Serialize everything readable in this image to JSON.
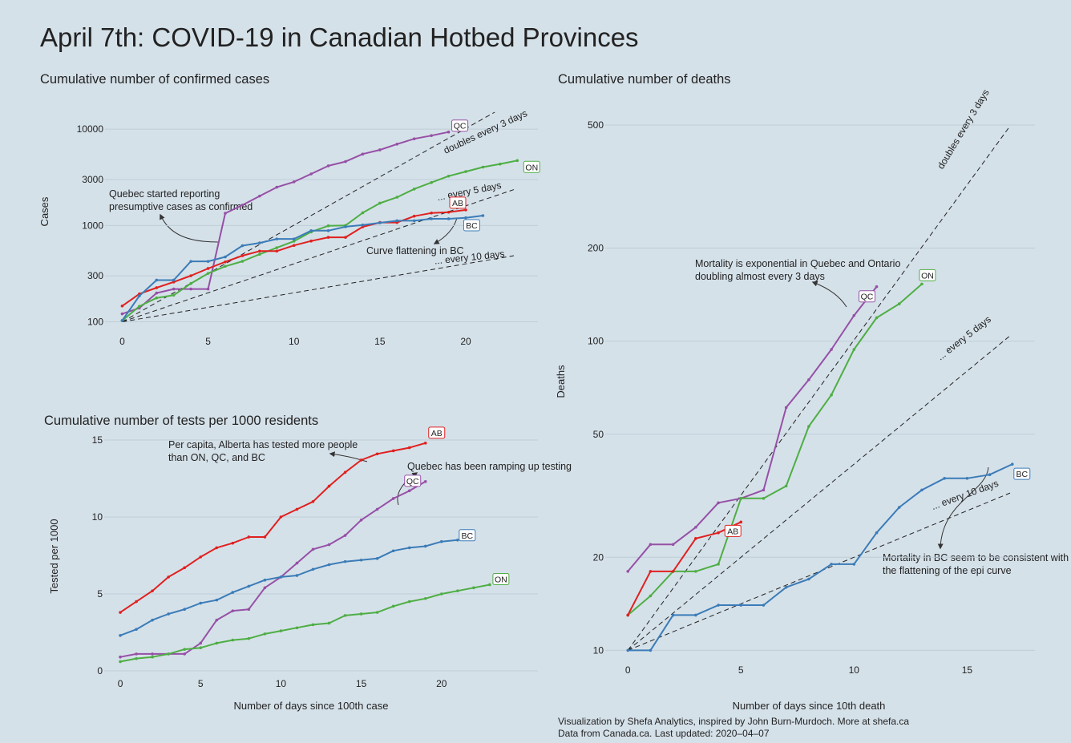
{
  "header": {
    "title": "April 7th: COVID-19 in Canadian Hotbed Provinces"
  },
  "footer": {
    "line1": "Visualization by Shefa Analytics, inspired by John Burn-Murdoch. More at shefa.ca",
    "line2": "Data from Canada.ca. Last updated: 2020–04–07"
  },
  "colors": {
    "QC": "#9650a6",
    "ON": "#4eae44",
    "AB": "#e0201f",
    "BC": "#3b7cb8",
    "background": "#d5e1e9",
    "grid": "#bfcdd7"
  },
  "chart_data": [
    {
      "id": "cases",
      "type": "line",
      "title": "Cumulative number of confirmed cases",
      "xlabel": "",
      "ylabel": "Cases",
      "yscale": "log",
      "xlim": [
        -1,
        24.2
      ],
      "ylim": [
        85,
        15000
      ],
      "xticks": [
        0,
        5,
        10,
        15,
        20
      ],
      "yticks": [
        100,
        300,
        1000,
        3000,
        10000
      ],
      "series": [
        {
          "name": "QC",
          "x": [
            0,
            1,
            2,
            3,
            4,
            5,
            6,
            7,
            8,
            9,
            10,
            11,
            12,
            13,
            14,
            15,
            16,
            17,
            18,
            19
          ],
          "y": [
            121,
            139,
            199,
            219,
            219,
            219,
            1339,
            1629,
            2021,
            2498,
            2840,
            3430,
            4162,
            4611,
            5518,
            6101,
            6997,
            7944,
            8580,
            9340
          ]
        },
        {
          "name": "ON",
          "x": [
            0,
            1,
            2,
            3,
            4,
            5,
            6,
            7,
            8,
            9,
            10,
            11,
            12,
            13,
            14,
            15,
            16,
            17,
            18,
            19,
            20,
            21,
            22,
            23
          ],
          "y": [
            103,
            145,
            177,
            189,
            250,
            318,
            377,
            425,
            503,
            588,
            688,
            858,
            994,
            1000,
            1355,
            1706,
            1966,
            2392,
            2793,
            3255,
            3630,
            4038,
            4347,
            4726
          ]
        },
        {
          "name": "AB",
          "x": [
            0,
            1,
            2,
            3,
            4,
            5,
            6,
            7,
            8,
            9,
            10,
            11,
            12,
            13,
            14,
            15,
            16,
            17,
            18,
            19,
            20
          ],
          "y": [
            146,
            195,
            226,
            259,
            301,
            358,
            419,
            486,
            542,
            542,
            621,
            690,
            754,
            754,
            968,
            1075,
            1075,
            1250,
            1348,
            1373,
            1451
          ]
        },
        {
          "name": "BC",
          "x": [
            0,
            1,
            2,
            3,
            4,
            5,
            6,
            7,
            8,
            9,
            10,
            11,
            12,
            13,
            14,
            15,
            16,
            17,
            18,
            19,
            20,
            21
          ],
          "y": [
            103,
            186,
            271,
            271,
            424,
            424,
            472,
            617,
            659,
            725,
            725,
            884,
            884,
            970,
            1013,
            1066,
            1121,
            1121,
            1174,
            1174,
            1203,
            1266
          ]
        }
      ],
      "reference_lines": [
        {
          "label": "doubles every 3 days",
          "doubling_days": 3
        },
        {
          "label": "... every 5 days",
          "doubling_days": 5
        },
        {
          "label": "... every 10 days",
          "doubling_days": 10
        }
      ],
      "annotations": [
        {
          "text": "Quebec started reporting presumptive cases as confirmed"
        },
        {
          "text": "Curve flattening in BC"
        }
      ]
    },
    {
      "id": "tests",
      "type": "line",
      "title": "Cumulative number of tests per 1000 residents",
      "xlabel": "Number of days since 100th case",
      "ylabel": "Tested per 1000",
      "yscale": "linear",
      "xlim": [
        -1,
        26
      ],
      "ylim": [
        0,
        15
      ],
      "xticks": [
        0,
        5,
        10,
        15,
        20
      ],
      "yticks": [
        0,
        5,
        10,
        15
      ],
      "series": [
        {
          "name": "AB",
          "x": [
            0,
            1,
            2,
            3,
            4,
            5,
            6,
            7,
            8,
            9,
            10,
            11,
            12,
            13,
            14,
            15,
            16,
            17,
            18,
            19
          ],
          "y": [
            3.8,
            4.5,
            5.2,
            6.1,
            6.7,
            7.4,
            8.0,
            8.3,
            8.7,
            8.7,
            10.0,
            10.5,
            11.0,
            12.0,
            12.9,
            13.7,
            14.1,
            14.3,
            14.5,
            14.8
          ]
        },
        {
          "name": "QC",
          "x": [
            0,
            1,
            2,
            3,
            4,
            5,
            6,
            7,
            8,
            9,
            10,
            11,
            12,
            13,
            14,
            15,
            16,
            17,
            18,
            19
          ],
          "y": [
            0.9,
            1.1,
            1.1,
            1.1,
            1.1,
            1.8,
            3.3,
            3.9,
            4.0,
            5.4,
            6.1,
            7.0,
            7.9,
            8.2,
            8.8,
            9.8,
            10.5,
            11.2,
            11.7,
            12.3
          ]
        },
        {
          "name": "BC",
          "x": [
            0,
            1,
            2,
            3,
            4,
            5,
            6,
            7,
            8,
            9,
            10,
            11,
            12,
            13,
            14,
            15,
            16,
            17,
            18,
            19,
            20,
            21
          ],
          "y": [
            2.3,
            2.7,
            3.3,
            3.7,
            4.0,
            4.4,
            4.6,
            5.1,
            5.5,
            5.9,
            6.1,
            6.2,
            6.6,
            6.9,
            7.1,
            7.2,
            7.3,
            7.8,
            8.0,
            8.1,
            8.4,
            8.5
          ]
        },
        {
          "name": "ON",
          "x": [
            0,
            1,
            2,
            3,
            4,
            5,
            6,
            7,
            8,
            9,
            10,
            11,
            12,
            13,
            14,
            15,
            16,
            17,
            18,
            19,
            20,
            21,
            22,
            23
          ],
          "y": [
            0.6,
            0.8,
            0.9,
            1.1,
            1.4,
            1.5,
            1.8,
            2.0,
            2.1,
            2.4,
            2.6,
            2.8,
            3.0,
            3.1,
            3.6,
            3.7,
            3.8,
            4.2,
            4.5,
            4.7,
            5.0,
            5.2,
            5.4,
            5.6
          ]
        }
      ],
      "annotations": [
        {
          "text": "Per capita, Alberta has tested more people than ON, QC, and BC"
        },
        {
          "text": "Quebec has been ramping up testing"
        }
      ]
    },
    {
      "id": "deaths",
      "type": "line",
      "title": "Cumulative number of deaths",
      "xlabel": "Number of days since 10th death",
      "ylabel": "Deaths",
      "yscale": "log",
      "xlim": [
        -1,
        18
      ],
      "ylim": [
        9.5,
        550
      ],
      "xticks": [
        0,
        5,
        10,
        15
      ],
      "yticks": [
        10,
        20,
        50,
        100,
        200,
        500
      ],
      "series": [
        {
          "name": "QC",
          "x": [
            0,
            1,
            2,
            3,
            4,
            5,
            6,
            7,
            8,
            9,
            10,
            11
          ],
          "y": [
            18,
            22,
            22,
            25,
            30,
            31,
            33,
            61,
            75,
            94,
            121,
            150
          ]
        },
        {
          "name": "ON",
          "x": [
            0,
            1,
            2,
            3,
            4,
            5,
            6,
            7,
            8,
            9,
            10,
            11,
            12,
            13
          ],
          "y": [
            13,
            15,
            18,
            18,
            19,
            31,
            31,
            34,
            53,
            67,
            94,
            119,
            132,
            153
          ]
        },
        {
          "name": "AB",
          "x": [
            0,
            1,
            2,
            3,
            4,
            5
          ],
          "y": [
            13,
            18,
            18,
            23,
            24,
            26
          ]
        },
        {
          "name": "BC",
          "x": [
            0,
            1,
            2,
            3,
            4,
            5,
            6,
            7,
            8,
            9,
            10,
            11,
            12,
            13,
            14,
            15,
            16,
            17
          ],
          "y": [
            10,
            10,
            13,
            13,
            14,
            14,
            14,
            16,
            17,
            19,
            19,
            24,
            29,
            33,
            36,
            36,
            37,
            40
          ]
        }
      ],
      "reference_lines": [
        {
          "label": "doubles every 3 days",
          "doubling_days": 3
        },
        {
          "label": "... every 5 days",
          "doubling_days": 5
        },
        {
          "label": "... every 10 days",
          "doubling_days": 10
        }
      ],
      "annotations": [
        {
          "text": "Mortality is exponential in Quebec and Ontario doubling almost every 3 days"
        },
        {
          "text": "Mortality in BC seem to be consistent with the flattening of the epi curve"
        }
      ]
    }
  ]
}
